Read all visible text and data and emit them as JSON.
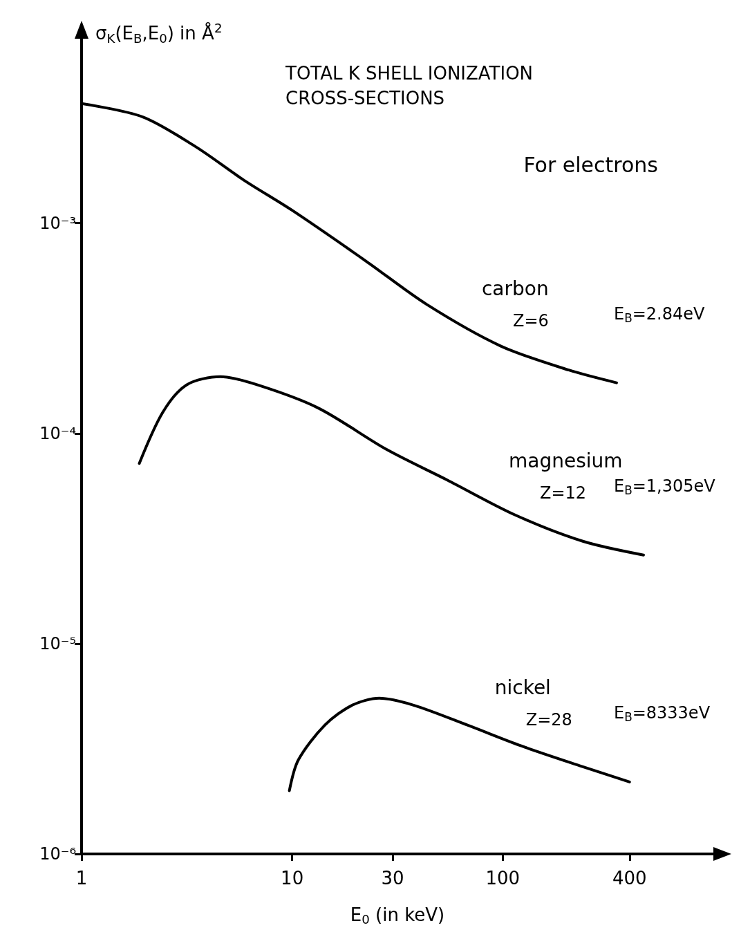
{
  "chart_data": {
    "type": "line",
    "title": "TOTAL K SHELL IONIZATION CROSS-SECTIONS",
    "subtitle": "For electrons",
    "xlabel": "E$_{0}$ (in keV)",
    "ylabel": "σ$_{K}$(E$_{B}$,E$_{0}$) in Å$^{2}$",
    "log": "xy",
    "xlim": [
      1,
      1000
    ],
    "ylim": [
      1e-06,
      0.008
    ],
    "xticks": [
      1,
      10,
      30,
      100,
      400
    ],
    "yticks": [
      {
        "value": 1e-06,
        "label": "10⁻⁶"
      },
      {
        "value": 1e-05,
        "label": "10⁻⁵"
      },
      {
        "value": 0.0001,
        "label": "10⁻⁴"
      },
      {
        "value": 0.001,
        "label": "10⁻³"
      }
    ],
    "grid": false,
    "legend": false,
    "marker": "none",
    "line_style": "solid",
    "series": [
      {
        "name": "carbon",
        "color": "#000000",
        "x": [
          1,
          1.95,
          3.5,
          5.9,
          10,
          22.4,
          43.6,
          98,
          206,
          347
        ],
        "values": [
          0.0037,
          0.0032,
          0.0023,
          0.0016,
          0.00115,
          0.00066,
          0.00041,
          0.00026,
          0.0002,
          0.000174
        ]
      },
      {
        "name": "magnesium",
        "color": "#000000",
        "x": [
          1.88,
          2.43,
          3.15,
          4.56,
          6.85,
          13.3,
          28,
          54.5,
          114,
          240,
          466
        ],
        "values": [
          7.2e-05,
          0.000126,
          0.00017,
          0.000186,
          0.00017,
          0.000132,
          8.4e-05,
          6e-05,
          4.1e-05,
          3.07e-05,
          2.64e-05
        ]
      },
      {
        "name": "nickel",
        "color": "#000000",
        "x": [
          9.7,
          10.7,
          14.3,
          19.3,
          25.9,
          37.7,
          68,
          123,
          240,
          400
        ],
        "values": [
          2e-06,
          2.8e-06,
          4.1e-06,
          5.1e-06,
          5.5e-06,
          5.1e-06,
          4.1e-06,
          3.26e-06,
          2.6e-06,
          2.2e-06
        ]
      }
    ],
    "annotations": [
      "Z=6",
      "E$_{B}$=2.84eV",
      "Z=12",
      "E$_{B}$=1,305eV",
      "Z=28",
      "E$_{B}$=8333eV"
    ]
  }
}
